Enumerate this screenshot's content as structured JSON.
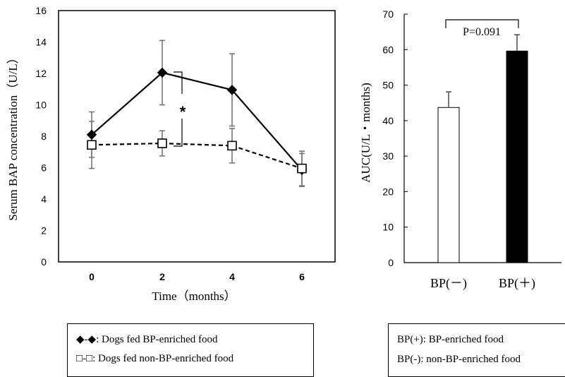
{
  "chart_data": [
    {
      "type": "line",
      "xlabel": "Time（months）",
      "ylabel": "Serum BAP concentration（U/L）",
      "x": [
        0,
        2,
        4,
        6
      ],
      "x_ticks": [
        "0",
        "2",
        "4",
        "6"
      ],
      "ylim": [
        0,
        16
      ],
      "y_ticks": [
        "0",
        "2",
        "4",
        "6",
        "8",
        "10",
        "12",
        "14",
        "16"
      ],
      "grid": false,
      "series": [
        {
          "marker": "diamond-filled",
          "line": "solid",
          "color": "#000000",
          "values": [
            8.1,
            12.05,
            10.95,
            5.85
          ],
          "errors": [
            1.45,
            2.05,
            2.3,
            1.05
          ]
        },
        {
          "marker": "square-open",
          "line": "dashed",
          "color": "#000000",
          "values": [
            7.45,
            7.55,
            7.4,
            5.95
          ],
          "errors": [
            1.5,
            0.8,
            1.1,
            1.1
          ]
        }
      ],
      "annotation": "*"
    },
    {
      "type": "bar",
      "ylabel": "AUC(U/L・months)",
      "categories": [
        "BP(－)",
        "BP(＋)"
      ],
      "values": [
        43.7,
        59.6
      ],
      "errors": [
        4.4,
        4.6
      ],
      "colors": [
        "#ffffff",
        "#000000"
      ],
      "ylim": [
        0,
        70
      ],
      "y_ticks": [
        "0",
        "10",
        "20",
        "30",
        "40",
        "50",
        "60",
        "70"
      ],
      "grid": false,
      "annotation": "P=0.091"
    }
  ],
  "legend_left": {
    "line1_symbol": "◆-◆",
    "line1_text": ": Dogs fed BP-enriched food",
    "line2_symbol": "□-□",
    "line2_text": ": Dogs fed non-BP-enriched food"
  },
  "legend_right": {
    "line1": "BP(+): BP-enriched food",
    "line2": "BP(-): non-BP-enriched food"
  }
}
